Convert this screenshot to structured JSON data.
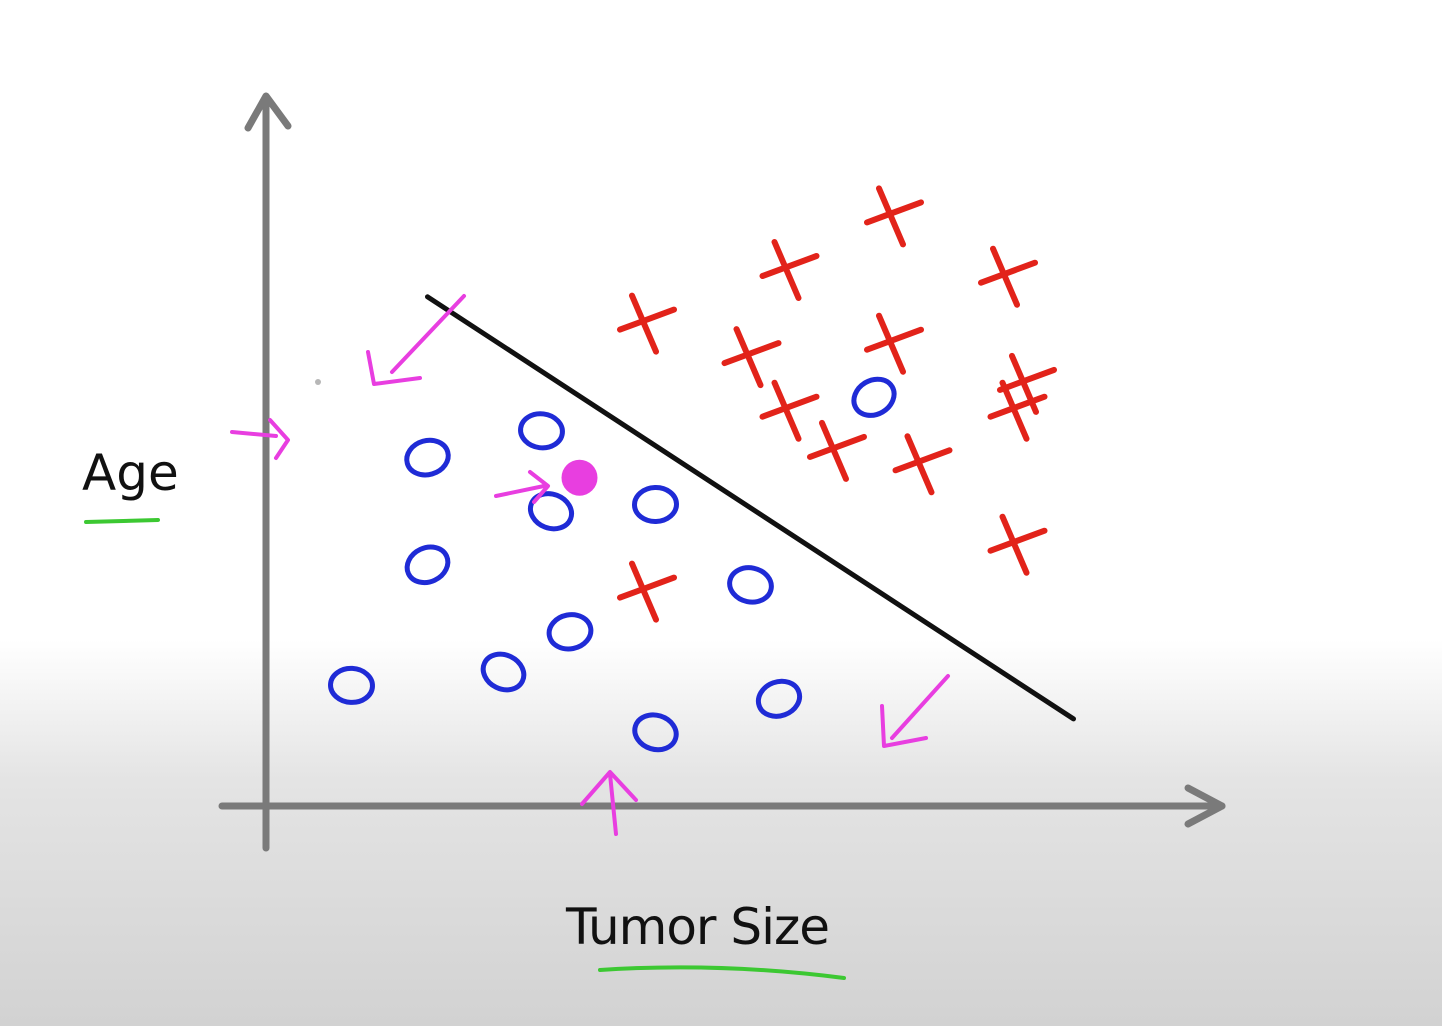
{
  "chart_data": {
    "type": "scatter",
    "xlabel": "Tumor Size",
    "ylabel": "Age",
    "xlim": [
      0,
      10
    ],
    "ylim": [
      0,
      10
    ],
    "grid": false,
    "series": [
      {
        "marker": "x",
        "color": "#e2231a",
        "points": [
          [
            4.0,
            7.2
          ],
          [
            5.5,
            8.0
          ],
          [
            6.6,
            8.8
          ],
          [
            7.8,
            7.9
          ],
          [
            5.1,
            6.7
          ],
          [
            6.6,
            6.9
          ],
          [
            8.0,
            6.3
          ],
          [
            5.5,
            5.9
          ],
          [
            6.0,
            5.3
          ],
          [
            6.9,
            5.1
          ],
          [
            7.9,
            5.9
          ],
          [
            7.9,
            3.9
          ],
          [
            4.0,
            3.2
          ]
        ]
      },
      {
        "marker": "o",
        "color": "#1f2bd6",
        "points": [
          [
            6.4,
            6.1
          ],
          [
            2.9,
            5.6
          ],
          [
            1.7,
            5.2
          ],
          [
            3.0,
            4.4
          ],
          [
            4.1,
            4.5
          ],
          [
            1.7,
            3.6
          ],
          [
            5.1,
            3.3
          ],
          [
            3.2,
            2.6
          ],
          [
            2.5,
            2.0
          ],
          [
            0.9,
            1.8
          ],
          [
            5.4,
            1.6
          ],
          [
            4.1,
            1.1
          ]
        ]
      }
    ],
    "decision_boundary": {
      "from": [
        1.7,
        7.6
      ],
      "to": [
        8.5,
        1.3
      ],
      "color": "#111111"
    },
    "highlight": {
      "point": [
        3.3,
        4.9
      ],
      "color": "#e83ee0"
    },
    "annotations": {
      "color": "#e83ee0",
      "underline_color": "#3cc832"
    }
  }
}
